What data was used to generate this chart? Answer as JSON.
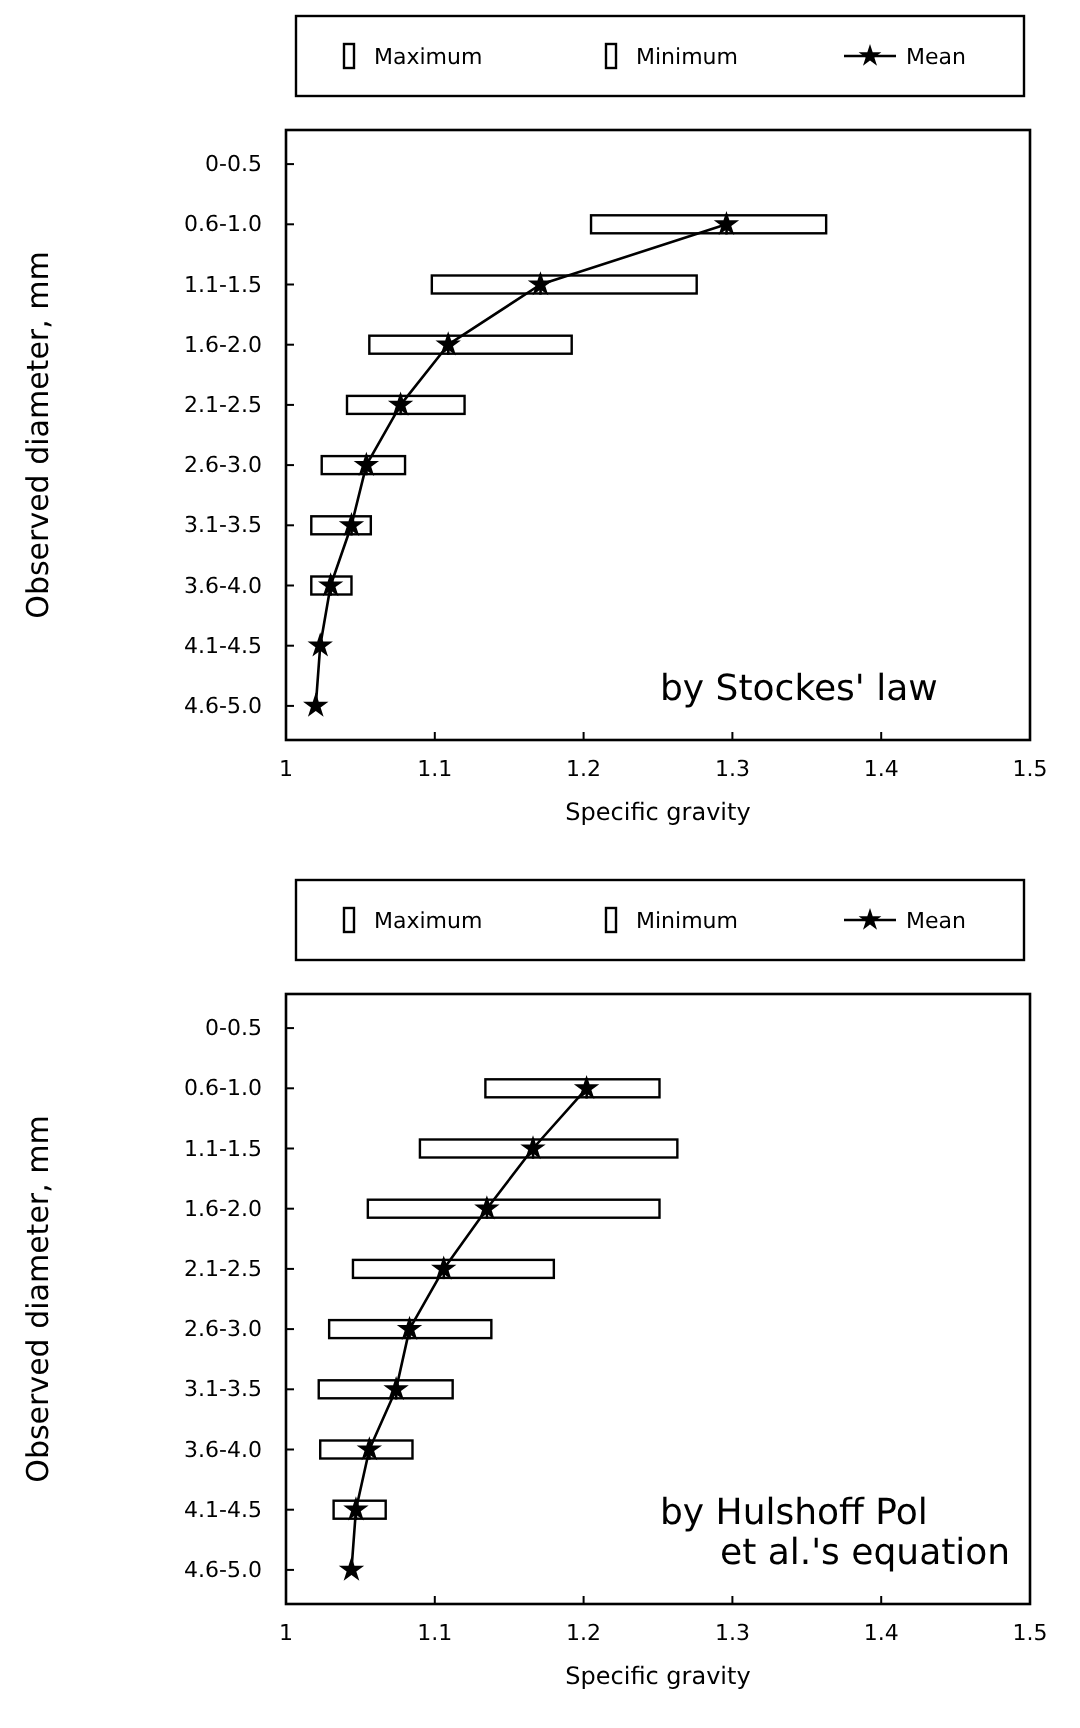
{
  "chart_data": [
    {
      "type": "bar",
      "orientation": "horizontal",
      "xlabel": "Specific gravity",
      "ylabel": "Observed diameter, mm",
      "legend": "top",
      "marker": "star",
      "line_style": "solid",
      "xlim": [
        1,
        1.5
      ],
      "xticks": [
        1,
        1.1,
        1.2,
        1.3,
        1.4,
        1.5
      ],
      "categories": [
        "0-0.5",
        "0.6-1.0",
        "1.1-1.5",
        "1.6-2.0",
        "2.1-2.5",
        "2.6-3.0",
        "3.1-3.5",
        "3.6-4.0",
        "4.1-4.5",
        "4.6-5.0"
      ],
      "series": [
        {
          "name": "Maximum",
          "color": "#ffffff",
          "base": [
            null,
            1.296,
            1.171,
            1.109,
            1.077,
            1.054,
            1.044,
            1.03,
            null,
            null
          ],
          "values": [
            null,
            0.067,
            0.105,
            0.083,
            0.043,
            0.026,
            0.013,
            0.014,
            null,
            null
          ]
        },
        {
          "name": "Minimum",
          "color": "#ffffff",
          "base": [
            null,
            1.205,
            1.098,
            1.056,
            1.041,
            1.024,
            1.017,
            1.017,
            null,
            null
          ],
          "values": [
            null,
            0.091,
            0.073,
            0.053,
            0.036,
            0.03,
            0.027,
            0.013,
            null,
            null
          ]
        },
        {
          "name": "Mean",
          "type": "line",
          "color": "#000000",
          "values": [
            null,
            1.296,
            1.171,
            1.109,
            1.077,
            1.054,
            1.044,
            1.03,
            1.023,
            1.02
          ]
        }
      ],
      "annotations": [
        "by Stockes' law"
      ]
    },
    {
      "type": "bar",
      "orientation": "horizontal",
      "xlabel": "Specific gravity",
      "ylabel": "Observed diameter, mm",
      "legend": "top",
      "marker": "star",
      "line_style": "solid",
      "xlim": [
        1,
        1.5
      ],
      "xticks": [
        1,
        1.1,
        1.2,
        1.3,
        1.4,
        1.5
      ],
      "categories": [
        "0-0.5",
        "0.6-1.0",
        "1.1-1.5",
        "1.6-2.0",
        "2.1-2.5",
        "2.6-3.0",
        "3.1-3.5",
        "3.6-4.0",
        "4.1-4.5",
        "4.6-5.0"
      ],
      "series": [
        {
          "name": "Maximum",
          "color": "#ffffff",
          "base": [
            null,
            1.202,
            1.166,
            1.135,
            1.106,
            1.083,
            1.074,
            1.056,
            1.047,
            null
          ],
          "values": [
            null,
            0.049,
            0.097,
            0.116,
            0.074,
            0.055,
            0.038,
            0.029,
            0.02,
            null
          ]
        },
        {
          "name": "Minimum",
          "color": "#ffffff",
          "base": [
            null,
            1.134,
            1.09,
            1.055,
            1.045,
            1.029,
            1.022,
            1.023,
            1.032,
            null
          ],
          "values": [
            null,
            0.068,
            0.076,
            0.08,
            0.061,
            0.054,
            0.052,
            0.033,
            0.015,
            null
          ]
        },
        {
          "name": "Mean",
          "type": "line",
          "color": "#000000",
          "values": [
            null,
            1.202,
            1.166,
            1.135,
            1.106,
            1.083,
            1.074,
            1.056,
            1.047,
            1.044
          ]
        }
      ],
      "annotations": [
        "by Hulshoff Pol\net al.'s equation"
      ]
    }
  ]
}
